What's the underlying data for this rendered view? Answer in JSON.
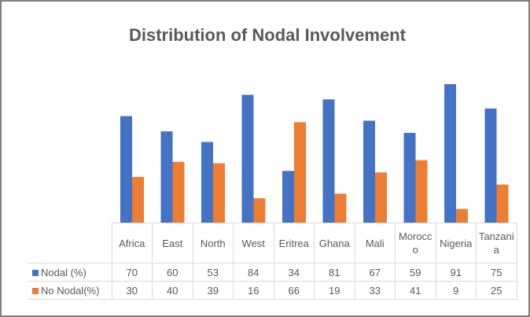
{
  "chart_data": {
    "type": "bar",
    "title": "Distribution  of Nodal  Involvement",
    "categories": [
      "Africa",
      "East",
      "North",
      "West",
      "Eritrea",
      "Ghana",
      "Mali",
      "Morocco",
      "Nigeria",
      "Tanzania"
    ],
    "series": [
      {
        "name": "Nodal (%)",
        "color": "#4472c4",
        "values": [
          70,
          60,
          53,
          84,
          34,
          81,
          67,
          59,
          91,
          75
        ]
      },
      {
        "name": "No Nodal(%)",
        "color": "#ed7d31",
        "values": [
          30,
          40,
          39,
          16,
          66,
          19,
          33,
          41,
          9,
          25
        ]
      }
    ]
  }
}
